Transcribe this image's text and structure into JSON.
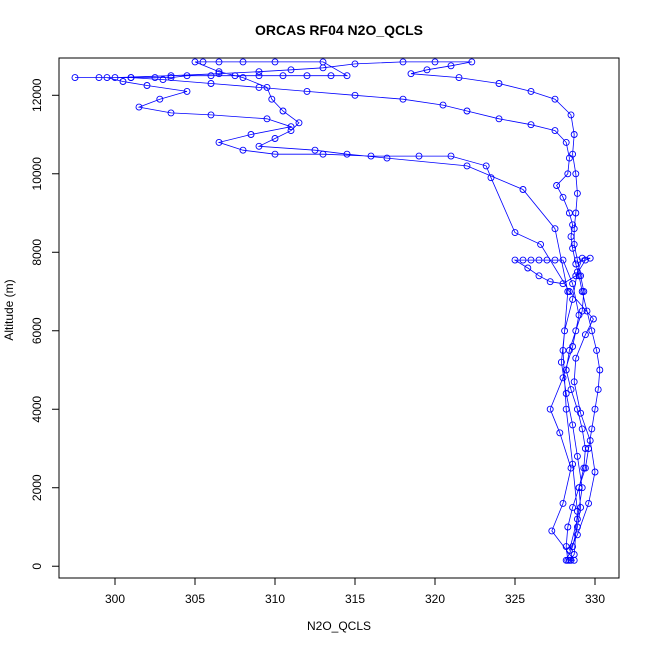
{
  "chart_data": {
    "type": "scatter",
    "title": "ORCAS RF04 N2O_QCLS",
    "xlabel": "N2O_QCLS",
    "ylabel": "Altitude (m)",
    "xlim": [
      296.5,
      331.5
    ],
    "ylim": [
      -300,
      12950
    ],
    "x_ticks": [
      300,
      305,
      310,
      315,
      320,
      325,
      330
    ],
    "y_ticks": [
      0,
      2000,
      4000,
      6000,
      8000,
      10000,
      12000
    ],
    "grid": false,
    "style": {
      "color": "#0000ff",
      "marker": "open-circle",
      "connected": true
    },
    "series": [
      {
        "name": "",
        "points": [
          [
            328.2,
            150
          ],
          [
            328.6,
            500
          ],
          [
            328.9,
            1000
          ],
          [
            329.1,
            1500
          ],
          [
            329.0,
            2000
          ],
          [
            329.4,
            2500
          ],
          [
            329.6,
            3000
          ],
          [
            329.8,
            3500
          ],
          [
            330.0,
            4000
          ],
          [
            330.2,
            4500
          ],
          [
            330.3,
            5000
          ],
          [
            330.1,
            5500
          ],
          [
            329.8,
            6000
          ],
          [
            329.5,
            6500
          ],
          [
            329.2,
            7000
          ],
          [
            329.0,
            7400
          ],
          [
            328.8,
            7700
          ],
          [
            328.6,
            8100
          ],
          [
            328.5,
            8400
          ],
          [
            328.6,
            8700
          ],
          [
            328.4,
            9000
          ],
          [
            328.0,
            9400
          ],
          [
            327.6,
            9700
          ],
          [
            328.3,
            10000
          ],
          [
            328.4,
            10400
          ],
          [
            328.2,
            10800
          ],
          [
            327.5,
            11100
          ],
          [
            326.0,
            11250
          ],
          [
            324.0,
            11400
          ],
          [
            322.0,
            11600
          ],
          [
            320.5,
            11750
          ],
          [
            318.0,
            11900
          ],
          [
            315.0,
            12000
          ],
          [
            312.0,
            12100
          ],
          [
            309.0,
            12200
          ],
          [
            306.0,
            12300
          ],
          [
            303.0,
            12400
          ],
          [
            301.0,
            12450
          ],
          [
            299.0,
            12450
          ],
          [
            297.5,
            12450
          ],
          [
            300.0,
            12450
          ],
          [
            303.5,
            12500
          ],
          [
            306.5,
            12550
          ],
          [
            309.0,
            12600
          ],
          [
            311.0,
            12650
          ],
          [
            313.0,
            12700
          ],
          [
            315.0,
            12800
          ],
          [
            318.0,
            12850
          ],
          [
            320.0,
            12850
          ],
          [
            322.3,
            12850
          ],
          [
            321.0,
            12750
          ],
          [
            319.5,
            12650
          ],
          [
            318.5,
            12550
          ],
          [
            321.5,
            12450
          ],
          [
            324.0,
            12300
          ],
          [
            326.0,
            12100
          ],
          [
            327.5,
            11900
          ],
          [
            328.5,
            11500
          ],
          [
            328.7,
            11000
          ],
          [
            328.6,
            10500
          ],
          [
            328.8,
            10000
          ],
          [
            328.9,
            9500
          ],
          [
            328.8,
            9000
          ],
          [
            328.7,
            8600
          ],
          [
            328.7,
            8200
          ],
          [
            328.9,
            7800
          ],
          [
            329.1,
            7400
          ],
          [
            329.3,
            7000
          ],
          [
            329.2,
            6500
          ],
          [
            328.8,
            6000
          ],
          [
            328.4,
            5500
          ],
          [
            328.2,
            5000
          ],
          [
            328.5,
            4500
          ],
          [
            328.9,
            4000
          ],
          [
            329.2,
            3500
          ],
          [
            329.4,
            3000
          ],
          [
            329.3,
            2500
          ],
          [
            329.0,
            2000
          ],
          [
            328.6,
            1500
          ],
          [
            328.3,
            1000
          ],
          [
            328.2,
            500
          ],
          [
            328.3,
            150
          ],
          [
            328.5,
            150
          ],
          [
            328.7,
            150
          ],
          [
            327.3,
            900
          ],
          [
            328.0,
            1600
          ],
          [
            328.5,
            2500
          ],
          [
            327.8,
            3400
          ],
          [
            327.2,
            4000
          ],
          [
            328.0,
            4800
          ],
          [
            328.6,
            5600
          ],
          [
            329.0,
            6400
          ],
          [
            328.6,
            7200
          ],
          [
            328.0,
            7800
          ],
          [
            327.5,
            7800
          ],
          [
            327.0,
            7800
          ],
          [
            326.5,
            7800
          ],
          [
            326.0,
            7800
          ],
          [
            325.5,
            7800
          ],
          [
            325.0,
            7800
          ],
          [
            325.8,
            7600
          ],
          [
            326.5,
            7400
          ],
          [
            327.2,
            7250
          ],
          [
            328.0,
            7200
          ],
          [
            328.8,
            7400
          ],
          [
            329.4,
            7800
          ],
          [
            329.7,
            7850
          ],
          [
            329.2,
            7850
          ],
          [
            328.9,
            7500
          ],
          [
            328.6,
            6800
          ],
          [
            328.1,
            6000
          ],
          [
            327.9,
            5200
          ],
          [
            328.2,
            4400
          ],
          [
            328.6,
            3600
          ],
          [
            328.9,
            2800
          ],
          [
            329.2,
            2000
          ],
          [
            328.9,
            1200
          ],
          [
            328.4,
            400
          ],
          [
            328.9,
            800
          ],
          [
            329.6,
            1600
          ],
          [
            330.0,
            2400
          ],
          [
            329.7,
            3200
          ],
          [
            329.1,
            3900
          ],
          [
            328.7,
            4700
          ],
          [
            328.8,
            5300
          ],
          [
            329.4,
            5900
          ],
          [
            329.9,
            6300
          ],
          [
            328.4,
            7000
          ],
          [
            326.6,
            8200
          ],
          [
            325.0,
            8500
          ],
          [
            323.5,
            9900
          ],
          [
            323.2,
            10200
          ],
          [
            321.0,
            10450
          ],
          [
            319.0,
            10450
          ],
          [
            316.0,
            10450
          ],
          [
            313.0,
            10500
          ],
          [
            310.0,
            10500
          ],
          [
            308.0,
            10600
          ],
          [
            306.5,
            10800
          ],
          [
            308.5,
            11000
          ],
          [
            311.0,
            11200
          ],
          [
            309.5,
            11400
          ],
          [
            306.0,
            11500
          ],
          [
            303.5,
            11550
          ],
          [
            301.5,
            11700
          ],
          [
            302.8,
            11900
          ],
          [
            304.5,
            12100
          ],
          [
            302.0,
            12250
          ],
          [
            300.5,
            12350
          ],
          [
            299.5,
            12450
          ],
          [
            301.0,
            12450
          ],
          [
            302.5,
            12450
          ],
          [
            303.5,
            12450
          ],
          [
            304.5,
            12500
          ],
          [
            306.0,
            12500
          ],
          [
            307.5,
            12500
          ],
          [
            309.0,
            12500
          ],
          [
            310.5,
            12500
          ],
          [
            312.0,
            12500
          ],
          [
            313.5,
            12500
          ],
          [
            314.5,
            12500
          ],
          [
            313.0,
            12850
          ],
          [
            310.0,
            12850
          ],
          [
            308.0,
            12850
          ],
          [
            306.5,
            12850
          ],
          [
            305.5,
            12850
          ],
          [
            305.0,
            12850
          ],
          [
            306.5,
            12600
          ],
          [
            308.0,
            12450
          ],
          [
            309.5,
            12200
          ],
          [
            309.8,
            11900
          ],
          [
            310.5,
            11600
          ],
          [
            311.5,
            11300
          ],
          [
            311.0,
            11100
          ],
          [
            310.0,
            10900
          ],
          [
            309.0,
            10700
          ],
          [
            312.5,
            10600
          ],
          [
            314.5,
            10500
          ],
          [
            317.0,
            10400
          ],
          [
            322.0,
            10200
          ],
          [
            325.5,
            9600
          ],
          [
            327.5,
            8600
          ],
          [
            328.3,
            7000
          ],
          [
            328.0,
            5500
          ],
          [
            328.2,
            4000
          ],
          [
            328.6,
            2600
          ],
          [
            328.9,
            1400
          ],
          [
            328.7,
            300
          ],
          [
            328.4,
            150
          ]
        ]
      }
    ]
  }
}
